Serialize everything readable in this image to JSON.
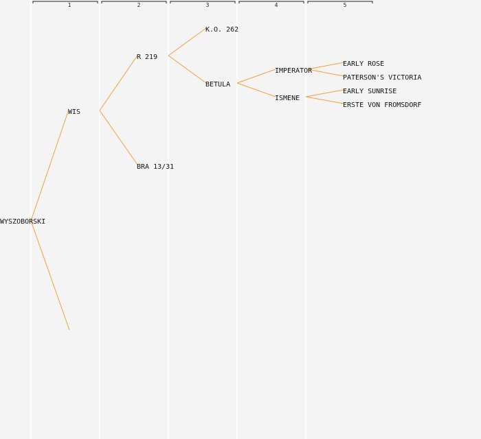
{
  "colors": {
    "background": "#f4f4f4",
    "edge": "#f5a03a",
    "column_line": "#ffffff",
    "text": "#111111"
  },
  "generations": [
    "1",
    "2",
    "3",
    "4",
    "5"
  ],
  "pedigree": {
    "root": "WYSZOBORSKI",
    "gen1": {
      "upper": "WIS",
      "lower": ""
    },
    "gen2": {
      "upper": "R 219",
      "lower": "BRA 13/31"
    },
    "gen3": {
      "upper": "K.O. 262",
      "lower": "BETULA"
    },
    "gen4": {
      "upper": "IMPERATOR",
      "lower": "ISMENE"
    },
    "gen5": {
      "a": "EARLY ROSE",
      "b": "PATERSON'S VICTORIA",
      "c": "EARLY SUNRISE",
      "d": "ERSTE VON FROMSDORF"
    }
  }
}
